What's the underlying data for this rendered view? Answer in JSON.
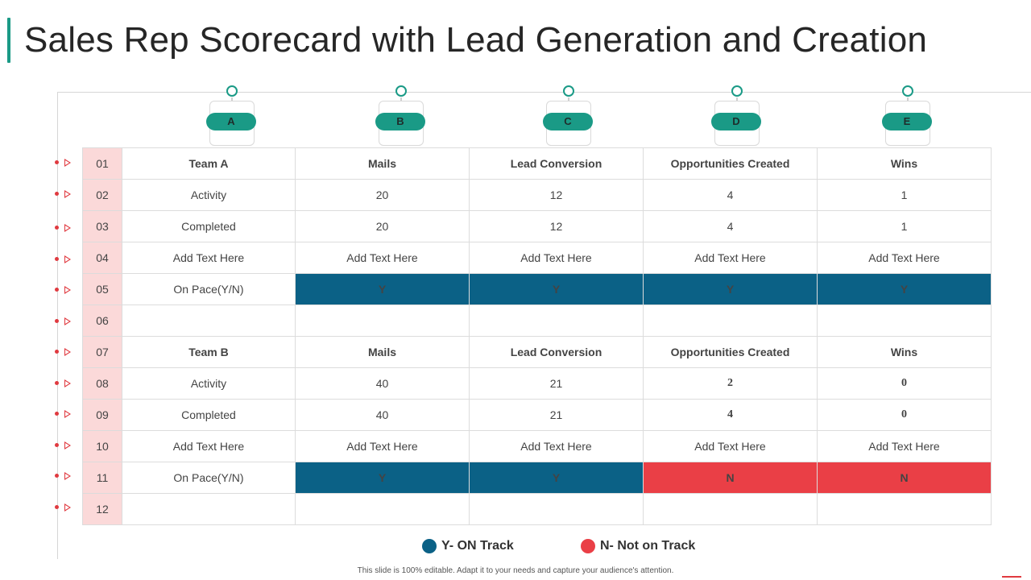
{
  "title": "Sales Rep Scorecard with Lead Generation and Creation",
  "colors": {
    "teal": "#1a9a86",
    "on_track": "#0b6186",
    "not_on_track": "#ea3f46",
    "row_number_bg": "#fbd9d9"
  },
  "column_tags": [
    "A",
    "B",
    "C",
    "D",
    "E"
  ],
  "row_numbers": [
    "01",
    "02",
    "03",
    "04",
    "05",
    "06",
    "07",
    "08",
    "09",
    "10",
    "11",
    "12"
  ],
  "team_a": {
    "header": [
      "Team A",
      "Mails",
      "Lead Conversion",
      "Opportunities Created",
      "Wins"
    ],
    "activity": [
      "Activity",
      "20",
      "12",
      "4",
      "1"
    ],
    "completed": [
      "Completed",
      "20",
      "12",
      "4",
      "1"
    ],
    "text": [
      "Add Text Here",
      "Add Text Here",
      "Add Text Here",
      "Add Text Here",
      "Add Text Here"
    ],
    "on_pace": [
      "On Pace(Y/N)",
      "Y",
      "Y",
      "Y",
      "Y"
    ]
  },
  "team_b": {
    "header": [
      "Team B",
      "Mails",
      "Lead Conversion",
      "Opportunities Created",
      "Wins"
    ],
    "activity": [
      "Activity",
      "40",
      "21",
      "2",
      "0"
    ],
    "completed": [
      "Completed",
      "40",
      "21",
      "4",
      "0"
    ],
    "text": [
      "Add Text Here",
      "Add Text Here",
      "Add Text Here",
      "Add Text Here",
      "Add Text Here"
    ],
    "on_pace": [
      "On Pace(Y/N)",
      "Y",
      "Y",
      "N",
      "N"
    ]
  },
  "legend": {
    "on_track": "Y- ON Track",
    "not_on_track": "N- Not on Track"
  },
  "footer": "This slide is 100% editable.  Adapt it to your needs and capture your audience's attention."
}
